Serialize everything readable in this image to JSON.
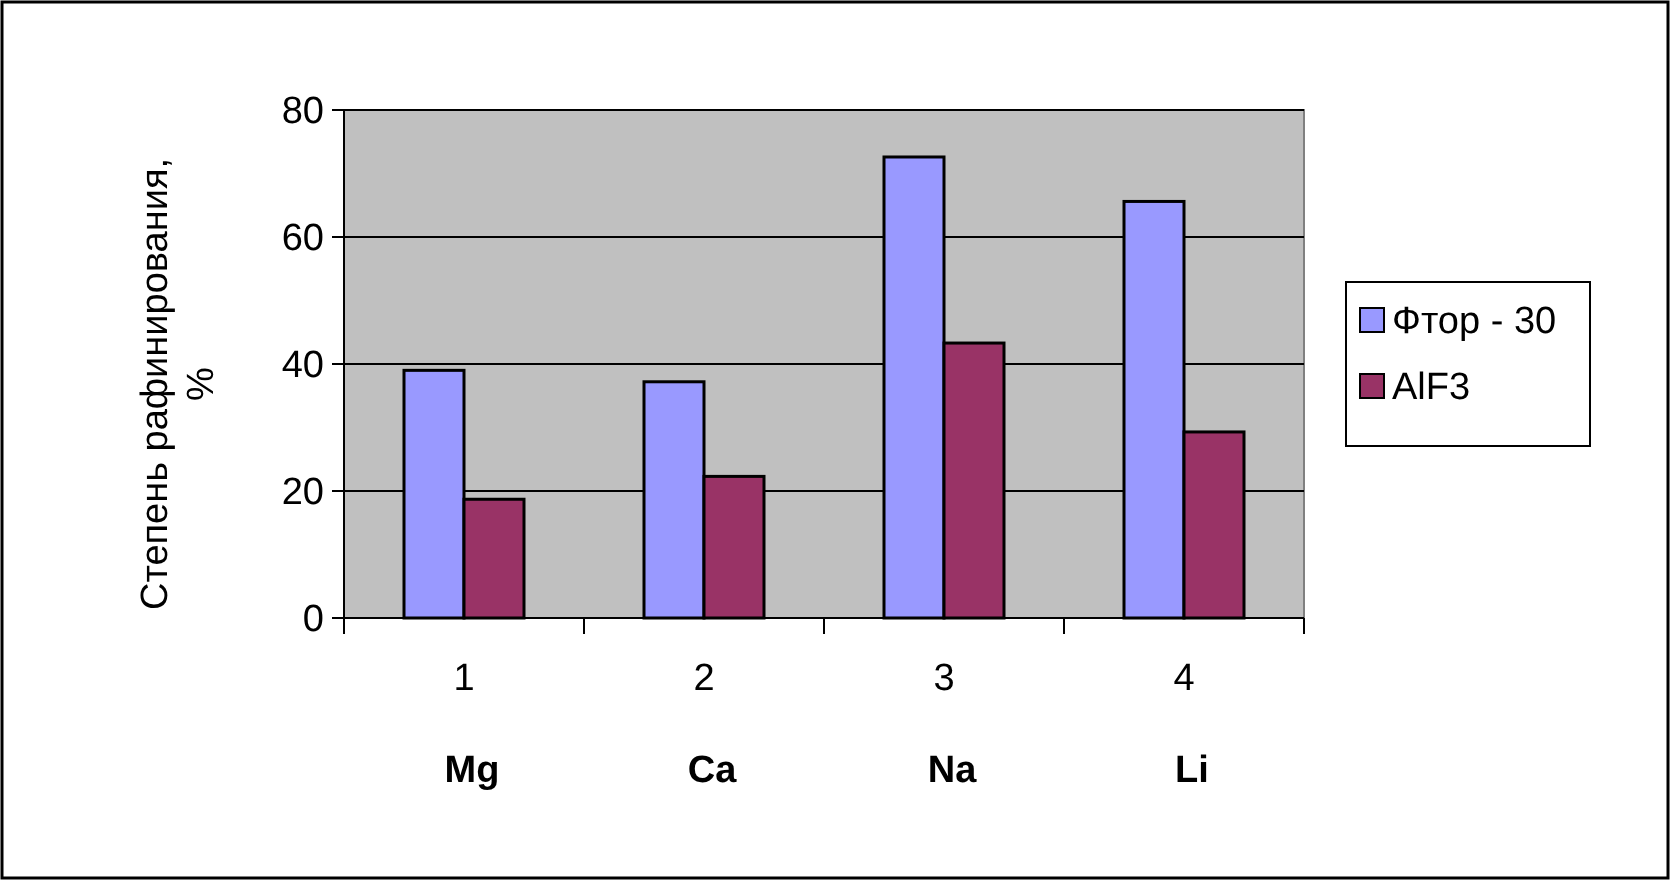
{
  "chart_data": {
    "type": "bar",
    "ylabel": "Степень рафинирования, %",
    "categories": [
      "1",
      "2",
      "3",
      "4"
    ],
    "series": [
      {
        "name": "Фтор - 30",
        "color": "#9999ff",
        "values": [
          39,
          37.2,
          72.6,
          65.6
        ]
      },
      {
        "name": "AlF3",
        "color": "#993366",
        "values": [
          18.7,
          22.3,
          43.3,
          29.3
        ]
      }
    ],
    "ylim": [
      0,
      80
    ],
    "yticks": [
      0,
      20,
      40,
      60,
      80
    ],
    "grid": "y",
    "legend": "right",
    "annotations": [
      "Mg",
      "Ca",
      "Na",
      "Li"
    ]
  }
}
